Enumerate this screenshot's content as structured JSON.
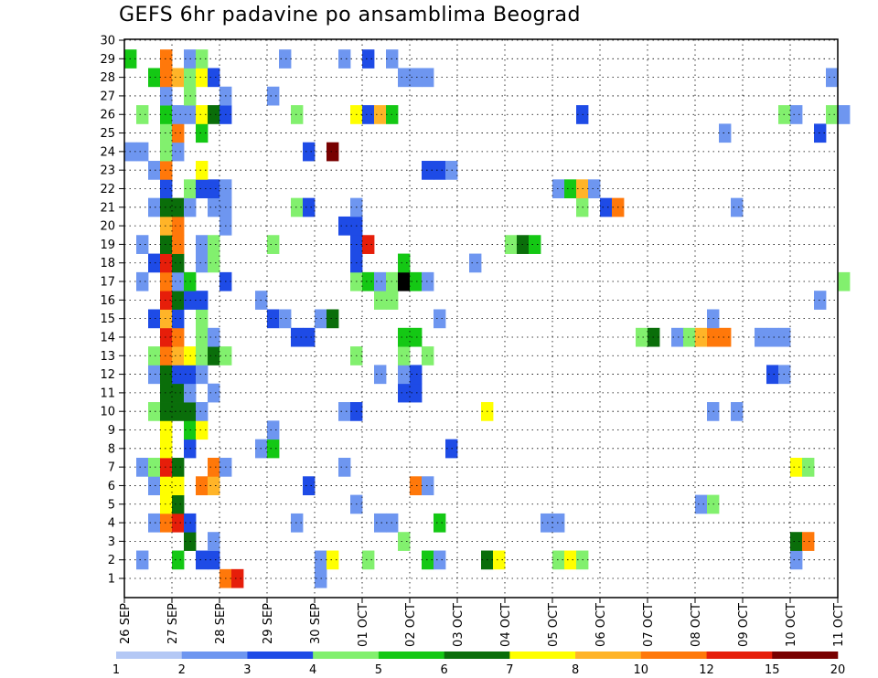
{
  "chart_data": {
    "type": "heatmap",
    "title": "GEFS 6hr padavine po ansamblima Beograd",
    "x_tick_labels": [
      "26 SEP",
      "27 SEP",
      "28 SEP",
      "29 SEP",
      "30 SEP",
      "01 OCT",
      "02 OCT",
      "03 OCT",
      "04 OCT",
      "05 OCT",
      "06 OCT",
      "07 OCT",
      "08 OCT",
      "09 OCT",
      "10 OCT",
      "11 OCT"
    ],
    "y_tick_labels": [
      "1",
      "2",
      "3",
      "4",
      "5",
      "6",
      "7",
      "8",
      "9",
      "10",
      "11",
      "12",
      "13",
      "14",
      "15",
      "16",
      "17",
      "18",
      "19",
      "20",
      "21",
      "22",
      "23",
      "24",
      "25",
      "26",
      "27",
      "28",
      "29",
      "30"
    ],
    "y_range": [
      1,
      30
    ],
    "x_steps_per_day": 4,
    "grid": true,
    "colorbar": {
      "levels": [
        "1",
        "2",
        "3",
        "4",
        "5",
        "6",
        "7",
        "8",
        "10",
        "12",
        "15",
        "20"
      ],
      "colors": [
        "#b4c8f5",
        "#6e96f0",
        "#1e4be6",
        "#82f06e",
        "#14c814",
        "#0a6e0a",
        "#ffff00",
        "#ffb428",
        "#ff780a",
        "#e61e0a",
        "#780000"
      ]
    },
    "cells": [
      [
        1,
        8,
        8
      ],
      [
        1,
        9,
        9
      ],
      [
        1,
        16,
        1
      ],
      [
        2,
        1,
        1
      ],
      [
        2,
        4,
        4
      ],
      [
        2,
        6,
        2
      ],
      [
        2,
        7,
        2
      ],
      [
        2,
        16,
        1
      ],
      [
        2,
        17,
        6
      ],
      [
        2,
        20,
        3
      ],
      [
        2,
        25,
        4
      ],
      [
        2,
        26,
        1
      ],
      [
        2,
        30,
        5
      ],
      [
        2,
        31,
        6
      ],
      [
        2,
        36,
        3
      ],
      [
        2,
        37,
        6
      ],
      [
        2,
        38,
        3
      ],
      [
        2,
        56,
        1
      ],
      [
        3,
        5,
        5
      ],
      [
        3,
        7,
        1
      ],
      [
        3,
        23,
        3
      ],
      [
        3,
        56,
        5
      ],
      [
        3,
        57,
        8
      ],
      [
        4,
        2,
        1
      ],
      [
        4,
        3,
        8
      ],
      [
        4,
        4,
        9
      ],
      [
        4,
        5,
        2
      ],
      [
        4,
        14,
        1
      ],
      [
        4,
        21,
        1
      ],
      [
        4,
        22,
        1
      ],
      [
        4,
        26,
        4
      ],
      [
        4,
        35,
        1
      ],
      [
        4,
        36,
        1
      ],
      [
        5,
        3,
        6
      ],
      [
        5,
        4,
        5
      ],
      [
        5,
        19,
        1
      ],
      [
        5,
        48,
        1
      ],
      [
        5,
        49,
        3
      ],
      [
        6,
        2,
        1
      ],
      [
        6,
        3,
        6
      ],
      [
        6,
        4,
        6
      ],
      [
        6,
        6,
        8
      ],
      [
        6,
        7,
        7
      ],
      [
        6,
        15,
        2
      ],
      [
        6,
        24,
        8
      ],
      [
        6,
        25,
        1
      ],
      [
        7,
        1,
        1
      ],
      [
        7,
        2,
        3
      ],
      [
        7,
        3,
        9
      ],
      [
        7,
        4,
        5
      ],
      [
        7,
        7,
        8
      ],
      [
        7,
        8,
        1
      ],
      [
        7,
        18,
        1
      ],
      [
        7,
        56,
        6
      ],
      [
        7,
        57,
        3
      ],
      [
        8,
        3,
        6
      ],
      [
        8,
        5,
        2
      ],
      [
        8,
        11,
        1
      ],
      [
        8,
        12,
        4
      ],
      [
        8,
        27,
        2
      ],
      [
        9,
        3,
        6
      ],
      [
        9,
        5,
        4
      ],
      [
        9,
        6,
        6
      ],
      [
        9,
        12,
        1
      ],
      [
        10,
        2,
        3
      ],
      [
        10,
        3,
        5
      ],
      [
        10,
        4,
        5
      ],
      [
        10,
        5,
        5
      ],
      [
        10,
        6,
        1
      ],
      [
        10,
        18,
        1
      ],
      [
        10,
        19,
        2
      ],
      [
        10,
        30,
        6
      ],
      [
        10,
        49,
        1
      ],
      [
        10,
        51,
        1
      ],
      [
        11,
        3,
        5
      ],
      [
        11,
        4,
        5
      ],
      [
        11,
        5,
        1
      ],
      [
        11,
        7,
        1
      ],
      [
        11,
        23,
        2
      ],
      [
        11,
        24,
        2
      ],
      [
        12,
        2,
        1
      ],
      [
        12,
        3,
        5
      ],
      [
        12,
        4,
        2
      ],
      [
        12,
        5,
        2
      ],
      [
        12,
        6,
        1
      ],
      [
        12,
        21,
        1
      ],
      [
        12,
        23,
        1
      ],
      [
        12,
        24,
        2
      ],
      [
        12,
        54,
        2
      ],
      [
        12,
        55,
        1
      ],
      [
        13,
        2,
        3
      ],
      [
        13,
        3,
        8
      ],
      [
        13,
        4,
        7
      ],
      [
        13,
        5,
        6
      ],
      [
        13,
        6,
        3
      ],
      [
        13,
        7,
        5
      ],
      [
        13,
        8,
        3
      ],
      [
        13,
        19,
        3
      ],
      [
        13,
        23,
        3
      ],
      [
        13,
        25,
        3
      ],
      [
        14,
        3,
        9
      ],
      [
        14,
        4,
        8
      ],
      [
        14,
        6,
        3
      ],
      [
        14,
        7,
        1
      ],
      [
        14,
        14,
        2
      ],
      [
        14,
        15,
        2
      ],
      [
        14,
        23,
        4
      ],
      [
        14,
        24,
        4
      ],
      [
        14,
        43,
        3
      ],
      [
        14,
        44,
        5
      ],
      [
        14,
        46,
        1
      ],
      [
        14,
        47,
        3
      ],
      [
        14,
        48,
        7
      ],
      [
        14,
        49,
        8
      ],
      [
        14,
        50,
        8
      ],
      [
        14,
        53,
        1
      ],
      [
        14,
        54,
        1
      ],
      [
        14,
        55,
        1
      ],
      [
        15,
        2,
        2
      ],
      [
        15,
        3,
        7
      ],
      [
        15,
        4,
        2
      ],
      [
        15,
        6,
        3
      ],
      [
        15,
        12,
        2
      ],
      [
        15,
        13,
        1
      ],
      [
        15,
        16,
        1
      ],
      [
        15,
        17,
        5
      ],
      [
        15,
        26,
        1
      ],
      [
        15,
        49,
        1
      ],
      [
        16,
        3,
        9
      ],
      [
        16,
        4,
        5
      ],
      [
        16,
        5,
        2
      ],
      [
        16,
        6,
        2
      ],
      [
        16,
        11,
        1
      ],
      [
        16,
        21,
        3
      ],
      [
        16,
        22,
        3
      ],
      [
        16,
        58,
        1
      ],
      [
        17,
        1,
        1
      ],
      [
        17,
        3,
        8
      ],
      [
        17,
        4,
        1
      ],
      [
        17,
        5,
        4
      ],
      [
        17,
        8,
        2
      ],
      [
        17,
        19,
        3
      ],
      [
        17,
        20,
        4
      ],
      [
        17,
        21,
        1
      ],
      [
        17,
        22,
        3
      ],
      [
        17,
        23,
        11
      ],
      [
        17,
        24,
        4
      ],
      [
        17,
        25,
        1
      ],
      [
        17,
        60,
        3
      ],
      [
        18,
        2,
        2
      ],
      [
        18,
        3,
        9
      ],
      [
        18,
        4,
        5
      ],
      [
        18,
        6,
        1
      ],
      [
        18,
        7,
        3
      ],
      [
        18,
        19,
        2
      ],
      [
        18,
        23,
        4
      ],
      [
        18,
        29,
        1
      ],
      [
        19,
        1,
        1
      ],
      [
        19,
        3,
        5
      ],
      [
        19,
        4,
        8
      ],
      [
        19,
        6,
        1
      ],
      [
        19,
        7,
        3
      ],
      [
        19,
        12,
        3
      ],
      [
        19,
        19,
        2
      ],
      [
        19,
        20,
        9
      ],
      [
        19,
        32,
        3
      ],
      [
        19,
        33,
        5
      ],
      [
        19,
        34,
        4
      ],
      [
        20,
        3,
        7
      ],
      [
        20,
        4,
        8
      ],
      [
        20,
        8,
        1
      ],
      [
        20,
        18,
        2
      ],
      [
        20,
        19,
        2
      ],
      [
        21,
        2,
        1
      ],
      [
        21,
        3,
        5
      ],
      [
        21,
        4,
        5
      ],
      [
        21,
        5,
        1
      ],
      [
        21,
        7,
        1
      ],
      [
        21,
        8,
        1
      ],
      [
        21,
        14,
        3
      ],
      [
        21,
        15,
        2
      ],
      [
        21,
        19,
        1
      ],
      [
        21,
        38,
        3
      ],
      [
        21,
        40,
        2
      ],
      [
        21,
        41,
        8
      ],
      [
        21,
        51,
        1
      ],
      [
        22,
        3,
        2
      ],
      [
        22,
        5,
        3
      ],
      [
        22,
        6,
        2
      ],
      [
        22,
        7,
        2
      ],
      [
        22,
        8,
        1
      ],
      [
        22,
        36,
        1
      ],
      [
        22,
        37,
        4
      ],
      [
        22,
        38,
        7
      ],
      [
        22,
        39,
        1
      ],
      [
        23,
        2,
        1
      ],
      [
        23,
        3,
        8
      ],
      [
        23,
        6,
        6
      ],
      [
        23,
        25,
        2
      ],
      [
        23,
        26,
        2
      ],
      [
        23,
        27,
        1
      ],
      [
        24,
        0,
        1
      ],
      [
        24,
        1,
        1
      ],
      [
        24,
        3,
        3
      ],
      [
        24,
        4,
        1
      ],
      [
        24,
        15,
        2
      ],
      [
        24,
        17,
        10
      ],
      [
        25,
        3,
        3
      ],
      [
        25,
        4,
        8
      ],
      [
        25,
        6,
        4
      ],
      [
        25,
        50,
        1
      ],
      [
        25,
        58,
        2
      ],
      [
        26,
        1,
        3
      ],
      [
        26,
        3,
        4
      ],
      [
        26,
        4,
        1
      ],
      [
        26,
        5,
        1
      ],
      [
        26,
        6,
        6
      ],
      [
        26,
        7,
        5
      ],
      [
        26,
        8,
        2
      ],
      [
        26,
        14,
        3
      ],
      [
        26,
        19,
        6
      ],
      [
        26,
        20,
        2
      ],
      [
        26,
        21,
        7
      ],
      [
        26,
        22,
        4
      ],
      [
        26,
        38,
        2
      ],
      [
        26,
        55,
        3
      ],
      [
        26,
        56,
        1
      ],
      [
        26,
        59,
        3
      ],
      [
        26,
        60,
        1
      ],
      [
        27,
        3,
        1
      ],
      [
        27,
        5,
        3
      ],
      [
        27,
        8,
        1
      ],
      [
        27,
        12,
        1
      ],
      [
        28,
        2,
        4
      ],
      [
        28,
        3,
        8
      ],
      [
        28,
        4,
        7
      ],
      [
        28,
        5,
        3
      ],
      [
        28,
        6,
        6
      ],
      [
        28,
        7,
        2
      ],
      [
        28,
        23,
        1
      ],
      [
        28,
        24,
        1
      ],
      [
        28,
        25,
        1
      ],
      [
        28,
        59,
        1
      ],
      [
        29,
        0,
        4
      ],
      [
        29,
        3,
        8
      ],
      [
        29,
        5,
        1
      ],
      [
        29,
        6,
        3
      ],
      [
        29,
        13,
        1
      ],
      [
        29,
        18,
        1
      ],
      [
        29,
        20,
        2
      ],
      [
        29,
        22,
        1
      ]
    ]
  }
}
